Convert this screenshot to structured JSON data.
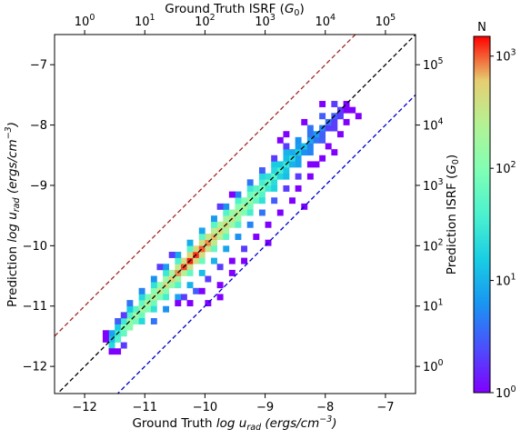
{
  "chart_data": {
    "type": "heatmap",
    "xlabel_prefix": "Ground Truth ",
    "xlabel_var": "log u",
    "xlabel_sub": "rad",
    "xlabel_units": "(ergs/cm",
    "xlabel_units_sup": "−3",
    "xlabel_units_end": ")",
    "ylabel_prefix": "Prediction ",
    "ylabel_var": "log u",
    "ylabel_sub": "rad",
    "ylabel_units": "(ergs/cm",
    "ylabel_units_sup": "−3",
    "ylabel_units_end": ")",
    "top_xlabel": "Ground Truth ISRF (",
    "top_xlabel_var": "G",
    "top_xlabel_sub": "0",
    "top_xlabel_end": ")",
    "right_ylabel": "Prediction ISRF (",
    "right_ylabel_var": "G",
    "right_ylabel_sub": "0",
    "right_ylabel_end": ")",
    "xlim": [
      -12.5,
      -6.5
    ],
    "ylim": [
      -12.45,
      -6.5
    ],
    "xticks": [
      -12,
      -11,
      -10,
      -9,
      -8,
      -7
    ],
    "xtick_labels": [
      "−12",
      "−11",
      "−10",
      "−9",
      "−8",
      "−7"
    ],
    "yticks": [
      -12,
      -11,
      -10,
      -9,
      -8,
      -7
    ],
    "ytick_labels": [
      "−12",
      "−11",
      "−10",
      "−9",
      "−8",
      "−7"
    ],
    "top_ticks": [
      {
        "base": "10",
        "exp": "0"
      },
      {
        "base": "10",
        "exp": "1"
      },
      {
        "base": "10",
        "exp": "2"
      },
      {
        "base": "10",
        "exp": "3"
      },
      {
        "base": "10",
        "exp": "4"
      },
      {
        "base": "10",
        "exp": "5"
      }
    ],
    "right_ticks": [
      {
        "base": "10",
        "exp": "0"
      },
      {
        "base": "10",
        "exp": "1"
      },
      {
        "base": "10",
        "exp": "2"
      },
      {
        "base": "10",
        "exp": "3"
      },
      {
        "base": "10",
        "exp": "4"
      },
      {
        "base": "10",
        "exp": "5"
      }
    ],
    "isrf_offset": -12.0,
    "reference_lines": [
      {
        "offset": 0,
        "color": "#000000"
      },
      {
        "offset": 1,
        "color": "#a52a2a"
      },
      {
        "offset": -1,
        "color": "#0000cc"
      }
    ],
    "colorbar": {
      "label": "N",
      "scale": "log",
      "range": [
        1,
        1500
      ],
      "ticks": [
        {
          "base": "10",
          "exp": "0",
          "value": 1
        },
        {
          "base": "10",
          "exp": "1",
          "value": 10
        },
        {
          "base": "10",
          "exp": "2",
          "value": 100
        },
        {
          "base": "10",
          "exp": "3",
          "value": 1000
        }
      ]
    },
    "colormap": "rainbow",
    "bin_width": 0.1,
    "cells": [
      [
        -11.55,
        -11.65,
        20
      ],
      [
        -11.55,
        -11.55,
        12
      ],
      [
        -11.45,
        -11.55,
        40
      ],
      [
        -11.45,
        -11.45,
        35
      ],
      [
        -11.55,
        -11.45,
        8
      ],
      [
        -11.45,
        -11.35,
        15
      ],
      [
        -11.35,
        -11.45,
        60
      ],
      [
        -11.35,
        -11.35,
        90
      ],
      [
        -11.35,
        -11.25,
        30
      ],
      [
        -11.25,
        -11.35,
        110
      ],
      [
        -11.25,
        -11.25,
        140
      ],
      [
        -11.25,
        -11.15,
        45
      ],
      [
        -11.15,
        -11.25,
        80
      ],
      [
        -11.15,
        -11.15,
        160
      ],
      [
        -11.15,
        -11.05,
        50
      ],
      [
        -11.05,
        -11.15,
        70
      ],
      [
        -11.05,
        -11.05,
        180
      ],
      [
        -11.05,
        -10.95,
        60
      ],
      [
        -10.95,
        -11.05,
        90
      ],
      [
        -10.95,
        -10.95,
        220
      ],
      [
        -10.95,
        -10.85,
        80
      ],
      [
        -10.85,
        -10.95,
        70
      ],
      [
        -10.85,
        -10.85,
        260
      ],
      [
        -10.85,
        -10.75,
        100
      ],
      [
        -10.75,
        -10.85,
        90
      ],
      [
        -10.75,
        -10.75,
        320
      ],
      [
        -10.75,
        -10.65,
        120
      ],
      [
        -10.65,
        -10.75,
        110
      ],
      [
        -10.65,
        -10.65,
        420
      ],
      [
        -10.65,
        -10.55,
        150
      ],
      [
        -10.55,
        -10.65,
        140
      ],
      [
        -10.55,
        -10.55,
        560
      ],
      [
        -10.55,
        -10.45,
        200
      ],
      [
        -10.45,
        -10.55,
        180
      ],
      [
        -10.45,
        -10.45,
        800
      ],
      [
        -10.45,
        -10.35,
        300
      ],
      [
        -10.35,
        -10.45,
        260
      ],
      [
        -10.35,
        -10.35,
        1100
      ],
      [
        -10.35,
        -10.25,
        420
      ],
      [
        -10.25,
        -10.35,
        380
      ],
      [
        -10.25,
        -10.25,
        1300
      ],
      [
        -10.25,
        -10.15,
        500
      ],
      [
        -10.15,
        -10.25,
        420
      ],
      [
        -10.15,
        -10.15,
        1200
      ],
      [
        -10.15,
        -10.05,
        480
      ],
      [
        -10.05,
        -10.15,
        420
      ],
      [
        -10.05,
        -10.05,
        1000
      ],
      [
        -10.05,
        -9.95,
        420
      ],
      [
        -9.95,
        -10.05,
        360
      ],
      [
        -9.95,
        -9.95,
        800
      ],
      [
        -9.95,
        -9.85,
        340
      ],
      [
        -9.85,
        -9.95,
        300
      ],
      [
        -9.85,
        -9.85,
        650
      ],
      [
        -9.85,
        -9.75,
        260
      ],
      [
        -9.75,
        -9.85,
        240
      ],
      [
        -9.75,
        -9.75,
        520
      ],
      [
        -9.75,
        -9.65,
        220
      ],
      [
        -9.65,
        -9.75,
        200
      ],
      [
        -9.65,
        -9.65,
        420
      ],
      [
        -9.65,
        -9.55,
        180
      ],
      [
        -9.55,
        -9.65,
        160
      ],
      [
        -9.55,
        -9.55,
        340
      ],
      [
        -9.55,
        -9.45,
        140
      ],
      [
        -9.45,
        -9.55,
        130
      ],
      [
        -9.45,
        -9.45,
        260
      ],
      [
        -9.45,
        -9.35,
        110
      ],
      [
        -9.35,
        -9.45,
        100
      ],
      [
        -9.35,
        -9.35,
        200
      ],
      [
        -9.35,
        -9.25,
        90
      ],
      [
        -9.25,
        -9.35,
        80
      ],
      [
        -9.25,
        -9.25,
        150
      ],
      [
        -9.25,
        -9.15,
        70
      ],
      [
        -9.15,
        -9.25,
        60
      ],
      [
        -9.15,
        -9.15,
        110
      ],
      [
        -9.15,
        -9.05,
        50
      ],
      [
        -9.05,
        -9.15,
        45
      ],
      [
        -9.05,
        -9.05,
        80
      ],
      [
        -9.05,
        -8.95,
        35
      ],
      [
        -8.95,
        -9.05,
        30
      ],
      [
        -8.95,
        -8.95,
        60
      ],
      [
        -8.95,
        -8.85,
        25
      ],
      [
        -8.85,
        -8.95,
        22
      ],
      [
        -8.85,
        -8.85,
        45
      ],
      [
        -8.85,
        -8.75,
        20
      ],
      [
        -8.75,
        -8.85,
        18
      ],
      [
        -8.75,
        -8.75,
        35
      ],
      [
        -8.75,
        -8.65,
        15
      ],
      [
        -8.65,
        -8.75,
        14
      ],
      [
        -8.65,
        -8.65,
        28
      ],
      [
        -8.65,
        -8.55,
        12
      ],
      [
        -8.55,
        -8.65,
        10
      ],
      [
        -8.55,
        -8.55,
        22
      ],
      [
        -8.55,
        -8.45,
        9
      ],
      [
        -8.45,
        -8.55,
        8
      ],
      [
        -8.45,
        -8.45,
        16
      ],
      [
        -8.45,
        -8.35,
        7
      ],
      [
        -8.35,
        -8.45,
        6
      ],
      [
        -8.35,
        -8.35,
        12
      ],
      [
        -8.25,
        -8.35,
        5
      ],
      [
        -8.25,
        -8.25,
        9
      ],
      [
        -8.25,
        -8.15,
        4
      ],
      [
        -8.15,
        -8.25,
        4
      ],
      [
        -8.15,
        -8.15,
        7
      ],
      [
        -8.05,
        -8.15,
        3
      ],
      [
        -8.05,
        -8.05,
        5
      ],
      [
        -7.95,
        -8.05,
        2
      ],
      [
        -7.95,
        -7.95,
        4
      ],
      [
        -7.85,
        -7.95,
        2
      ],
      [
        -7.85,
        -7.85,
        3
      ],
      [
        -7.75,
        -7.85,
        2
      ],
      [
        -7.75,
        -7.75,
        2
      ],
      [
        -7.65,
        -7.75,
        1
      ],
      [
        -7.65,
        -7.65,
        1
      ],
      [
        -7.55,
        -7.75,
        1
      ],
      [
        -7.45,
        -7.85,
        1
      ],
      [
        -11.25,
        -11.05,
        15
      ],
      [
        -11.05,
        -10.85,
        20
      ],
      [
        -10.85,
        -10.65,
        25
      ],
      [
        -10.65,
        -10.45,
        30
      ],
      [
        -10.45,
        -10.25,
        40
      ],
      [
        -10.25,
        -10.05,
        50
      ],
      [
        -10.05,
        -9.85,
        55
      ],
      [
        -9.85,
        -9.65,
        50
      ],
      [
        -9.65,
        -9.45,
        45
      ],
      [
        -9.45,
        -9.25,
        40
      ],
      [
        -9.25,
        -9.05,
        30
      ],
      [
        -9.05,
        -8.85,
        20
      ],
      [
        -8.85,
        -8.65,
        15
      ],
      [
        -8.65,
        -8.45,
        10
      ],
      [
        -8.45,
        -8.25,
        6
      ],
      [
        -8.25,
        -8.05,
        4
      ],
      [
        -8.05,
        -7.85,
        3
      ],
      [
        -7.85,
        -7.65,
        2
      ],
      [
        -11.05,
        -11.25,
        20
      ],
      [
        -10.85,
        -11.05,
        25
      ],
      [
        -10.65,
        -10.85,
        35
      ],
      [
        -10.45,
        -10.65,
        45
      ],
      [
        -10.25,
        -10.45,
        60
      ],
      [
        -10.05,
        -10.25,
        70
      ],
      [
        -9.85,
        -10.05,
        60
      ],
      [
        -9.65,
        -9.85,
        55
      ],
      [
        -9.45,
        -9.65,
        45
      ],
      [
        -9.25,
        -9.45,
        35
      ],
      [
        -9.05,
        -9.25,
        25
      ],
      [
        -8.85,
        -9.05,
        18
      ],
      [
        -8.65,
        -8.85,
        12
      ],
      [
        -8.45,
        -8.65,
        8
      ],
      [
        -8.25,
        -8.45,
        5
      ],
      [
        -8.05,
        -8.25,
        3
      ],
      [
        -7.85,
        -8.05,
        2
      ],
      [
        -10.85,
        -11.25,
        4
      ],
      [
        -10.65,
        -11.05,
        6
      ],
      [
        -10.45,
        -10.85,
        8
      ],
      [
        -10.25,
        -10.65,
        10
      ],
      [
        -10.05,
        -10.45,
        12
      ],
      [
        -9.85,
        -10.25,
        10
      ],
      [
        -9.65,
        -10.05,
        8
      ],
      [
        -9.45,
        -9.85,
        6
      ],
      [
        -9.25,
        -9.65,
        5
      ],
      [
        -9.05,
        -9.45,
        4
      ],
      [
        -8.85,
        -9.25,
        3
      ],
      [
        -8.65,
        -9.05,
        2
      ],
      [
        -8.45,
        -8.85,
        2
      ],
      [
        -8.25,
        -8.65,
        1
      ],
      [
        -11.45,
        -11.25,
        3
      ],
      [
        -11.25,
        -10.95,
        4
      ],
      [
        -11.05,
        -10.75,
        5
      ],
      [
        -10.85,
        -10.55,
        6
      ],
      [
        -10.65,
        -10.35,
        7
      ],
      [
        -10.45,
        -10.15,
        8
      ],
      [
        -10.25,
        -9.95,
        9
      ],
      [
        -10.05,
        -9.75,
        8
      ],
      [
        -9.85,
        -9.55,
        7
      ],
      [
        -9.65,
        -9.35,
        6
      ],
      [
        -9.45,
        -9.15,
        5
      ],
      [
        -9.25,
        -8.95,
        4
      ],
      [
        -9.05,
        -8.75,
        3
      ],
      [
        -8.85,
        -8.55,
        2
      ],
      [
        -8.65,
        -8.35,
        2
      ],
      [
        -10.35,
        -10.85,
        2
      ],
      [
        -10.15,
        -10.75,
        3
      ],
      [
        -9.95,
        -10.55,
        2
      ],
      [
        -9.75,
        -10.35,
        2
      ],
      [
        -9.55,
        -10.25,
        1
      ],
      [
        -9.35,
        -10.05,
        2
      ],
      [
        -9.15,
        -9.85,
        1
      ],
      [
        -8.95,
        -9.65,
        1
      ],
      [
        -8.75,
        -9.45,
        1
      ],
      [
        -8.55,
        -9.25,
        1
      ],
      [
        -10.45,
        -10.95,
        1
      ],
      [
        -10.25,
        -10.95,
        1
      ],
      [
        -10.05,
        -10.75,
        1
      ],
      [
        -9.75,
        -10.65,
        1
      ],
      [
        -9.55,
        -10.45,
        1
      ],
      [
        -11.55,
        -11.75,
        1
      ],
      [
        -11.45,
        -11.75,
        1
      ],
      [
        -11.65,
        -11.55,
        1
      ],
      [
        -11.35,
        -11.65,
        2
      ],
      [
        -11.65,
        -11.45,
        1
      ],
      [
        -11.35,
        -11.15,
        2
      ],
      [
        -10.75,
        -10.35,
        2
      ],
      [
        -10.55,
        -10.15,
        2
      ],
      [
        -9.75,
        -9.35,
        2
      ],
      [
        -9.55,
        -9.15,
        1
      ],
      [
        -8.75,
        -8.25,
        1
      ],
      [
        -8.35,
        -7.95,
        1
      ],
      [
        -8.05,
        -7.65,
        1
      ],
      [
        -8.65,
        -8.15,
        1
      ],
      [
        -8.45,
        -9.05,
        1
      ],
      [
        -8.25,
        -8.85,
        1
      ],
      [
        -8.05,
        -8.55,
        1
      ],
      [
        -7.95,
        -8.35,
        1
      ],
      [
        -7.85,
        -8.45,
        1
      ],
      [
        -8.15,
        -8.65,
        1
      ],
      [
        -7.75,
        -8.15,
        1
      ],
      [
        -7.65,
        -7.95,
        1
      ],
      [
        -9.95,
        -10.95,
        1
      ],
      [
        -9.75,
        -10.85,
        1
      ],
      [
        -9.35,
        -10.25,
        1
      ],
      [
        -8.95,
        -9.95,
        1
      ],
      [
        -8.35,
        -9.35,
        1
      ]
    ]
  }
}
